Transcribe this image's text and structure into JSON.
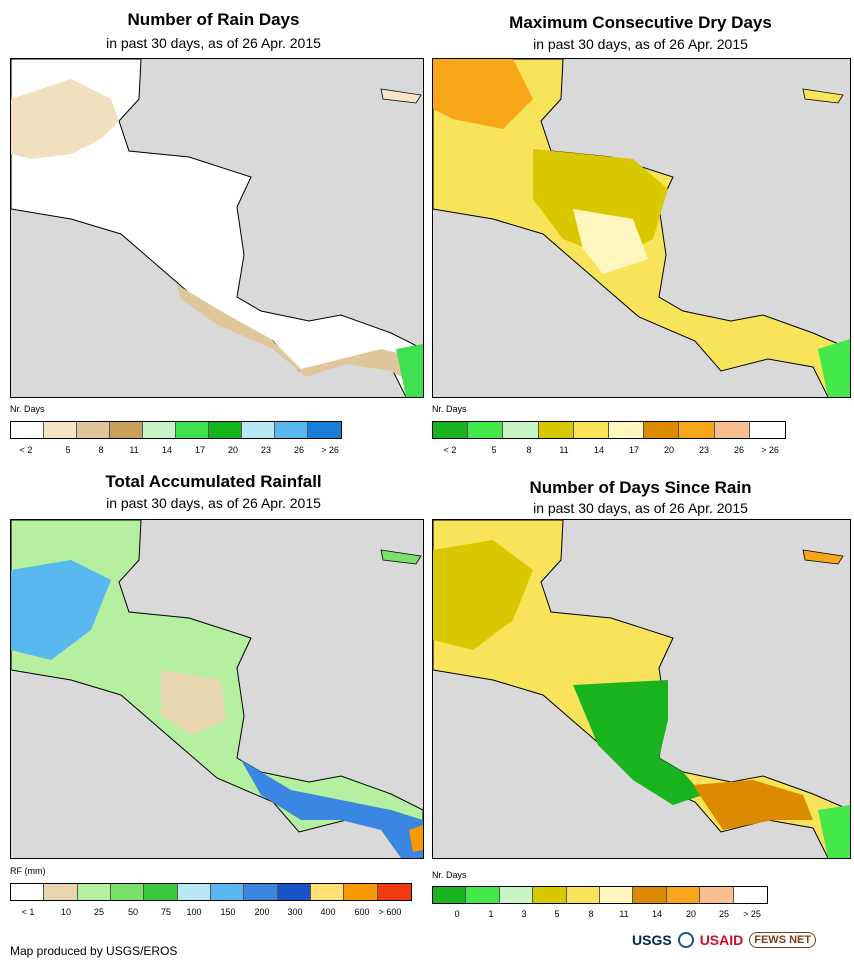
{
  "panels": {
    "rain_days": {
      "title": "Number of Rain Days",
      "subtitle": "in past 30 days, as of 26 Apr. 2015",
      "legend_title": "Nr. Days",
      "legend_labels": [
        "< 2",
        "5",
        "8",
        "11",
        "14",
        "17",
        "20",
        "23",
        "26",
        "> 26"
      ],
      "legend_colors": [
        "#ffffff",
        "#f5e6c8",
        "#e0c79b",
        "#c9a05a",
        "#c8f5c8",
        "#3fe04f",
        "#13b51c",
        "#b9e9f5",
        "#5ab7f0",
        "#1a7ed6"
      ]
    },
    "dry_days": {
      "title": "Maximum Consecutive Dry Days",
      "subtitle": "in past 30 days, as of 26 Apr. 2015",
      "legend_title": "Nr. Days",
      "legend_labels": [
        "< 2",
        "5",
        "8",
        "11",
        "14",
        "17",
        "20",
        "23",
        "26",
        "> 26"
      ],
      "legend_colors": [
        "#18b31e",
        "#44e84a",
        "#c8f5c8",
        "#d9c800",
        "#f7e45a",
        "#fff7bf",
        "#dc8a00",
        "#f7a61a",
        "#f8c090",
        "#ffffff"
      ]
    },
    "rainfall": {
      "title": "Total Accumulated Rainfall",
      "subtitle": "in past 30 days, as of 26 Apr. 2015",
      "legend_title": "RF (mm)",
      "legend_labels": [
        "< 1",
        "10",
        "25",
        "50",
        "75",
        "100",
        "150",
        "200",
        "300",
        "400",
        "600",
        "> 600"
      ],
      "legend_colors": [
        "#ffffff",
        "#e8d6b0",
        "#b5f0a0",
        "#79e06a",
        "#3cc83c",
        "#b9e9f5",
        "#5ab7f0",
        "#3a86e0",
        "#1a52c8",
        "#ffe070",
        "#f79a00",
        "#f03a10"
      ]
    },
    "since_rain": {
      "title": "Number of Days Since Rain",
      "subtitle": "in past 30 days, as of 26 Apr. 2015",
      "legend_title": "Nr. Days",
      "legend_labels": [
        "0",
        "1",
        "3",
        "5",
        "8",
        "11",
        "14",
        "20",
        "25",
        "> 25"
      ],
      "legend_colors": [
        "#18b31e",
        "#44e84a",
        "#c8f5c8",
        "#d9c800",
        "#f7e45a",
        "#fff7bf",
        "#dc8a00",
        "#f7a61a",
        "#f8c090",
        "#ffffff"
      ]
    }
  },
  "footer": {
    "credit": "Map produced by USGS/EROS",
    "logo_usgs": "USGS",
    "logo_usaid": "USAID",
    "logo_fews": "FEWS NET"
  }
}
